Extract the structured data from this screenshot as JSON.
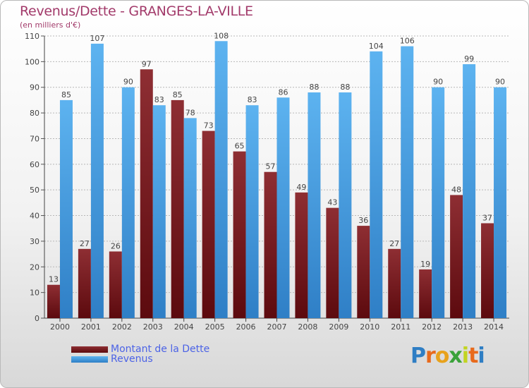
{
  "header": {
    "title": "Revenus/Dette - GRANGES-LA-VILLE",
    "subtitle": "(en milliers d'€)"
  },
  "chart_data": {
    "type": "bar",
    "categories": [
      "2000",
      "2001",
      "2002",
      "2003",
      "2004",
      "2005",
      "2006",
      "2007",
      "2008",
      "2009",
      "2010",
      "2011",
      "2012",
      "2013",
      "2014"
    ],
    "series": [
      {
        "name": "Montant de la Dette",
        "color": "#7a1f24",
        "values": [
          13,
          27,
          26,
          97,
          85,
          73,
          65,
          57,
          49,
          43,
          36,
          27,
          19,
          48,
          37
        ]
      },
      {
        "name": "Revenus",
        "color": "#4ea5e8",
        "values": [
          85,
          107,
          90,
          83,
          78,
          108,
          83,
          86,
          88,
          88,
          104,
          106,
          90,
          99,
          90
        ]
      }
    ],
    "ylim": [
      0,
      110
    ],
    "yticks": [
      0,
      10,
      20,
      30,
      40,
      50,
      60,
      70,
      80,
      90,
      100,
      110
    ],
    "grid": true,
    "legend_position": "bottom-left"
  },
  "legend": {
    "items": [
      {
        "label": "Montant de la Dette",
        "color": "#7a1f24"
      },
      {
        "label": "Revenus",
        "color": "#4ea5e8"
      }
    ]
  },
  "logo": {
    "letters": [
      "P",
      "r",
      "o",
      "x",
      "i",
      "t",
      "i"
    ],
    "colors": [
      "#2f7ec4",
      "#e86a1c",
      "#e8a21c",
      "#3aa23a",
      "#c2d421",
      "#e86a1c",
      "#2f7ec4"
    ]
  }
}
